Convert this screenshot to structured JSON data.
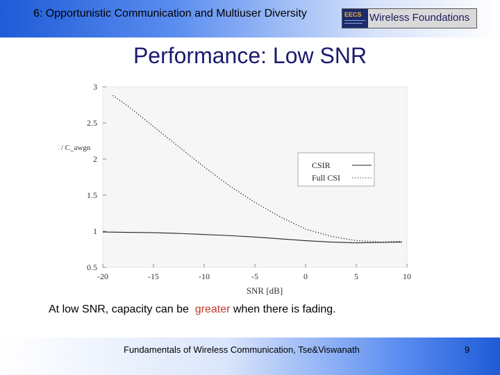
{
  "header": {
    "title": "6: Opportunistic Communication and Multiuser Diversity",
    "logo": {
      "left_text": "EECS",
      "right_text": "Wireless Foundations"
    }
  },
  "slide": {
    "title": "Performance: Low SNR",
    "body_prefix": "At low SNR, capacity can be",
    "body_highlight": "greater",
    "body_suffix": "when there is fading.",
    "highlight_color": "#c0392b"
  },
  "footer": {
    "text": "Fundamentals of Wireless Communication, Tse&Viswanath",
    "page_number": "9"
  },
  "chart_data": {
    "type": "line",
    "xlabel": "SNR [dB]",
    "ylabel": "C / C_awgn",
    "xlim": [
      -20,
      10
    ],
    "ylim": [
      0.5,
      3
    ],
    "xticks": [
      -20,
      -15,
      -10,
      -5,
      0,
      5,
      10
    ],
    "yticks": [
      0.5,
      1,
      1.5,
      2,
      2.5,
      3
    ],
    "xtick_labels": [
      "-20",
      "-15",
      "-10",
      "-5",
      "0",
      "5",
      "10"
    ],
    "ytick_labels": [
      "0.5",
      "1",
      "1.5",
      "2",
      "2.5",
      "3"
    ],
    "grid": false,
    "legend_position": "right",
    "series": [
      {
        "name": "CSIR",
        "style": "solid",
        "x": [
          -20,
          -17.5,
          -15,
          -12.5,
          -10,
          -7.5,
          -5,
          -2.5,
          0,
          2.5,
          5,
          7.5,
          9.5
        ],
        "y": [
          0.99,
          0.985,
          0.98,
          0.97,
          0.955,
          0.94,
          0.92,
          0.895,
          0.87,
          0.85,
          0.84,
          0.845,
          0.85
        ]
      },
      {
        "name": "Full CSI",
        "style": "dotted",
        "x": [
          -19,
          -17.5,
          -15,
          -12.5,
          -10,
          -7.5,
          -5,
          -2.5,
          0,
          2.5,
          5,
          7.5,
          9.5
        ],
        "y": [
          2.88,
          2.73,
          2.45,
          2.17,
          1.89,
          1.63,
          1.4,
          1.2,
          1.03,
          0.93,
          0.87,
          0.85,
          0.86
        ]
      }
    ]
  }
}
